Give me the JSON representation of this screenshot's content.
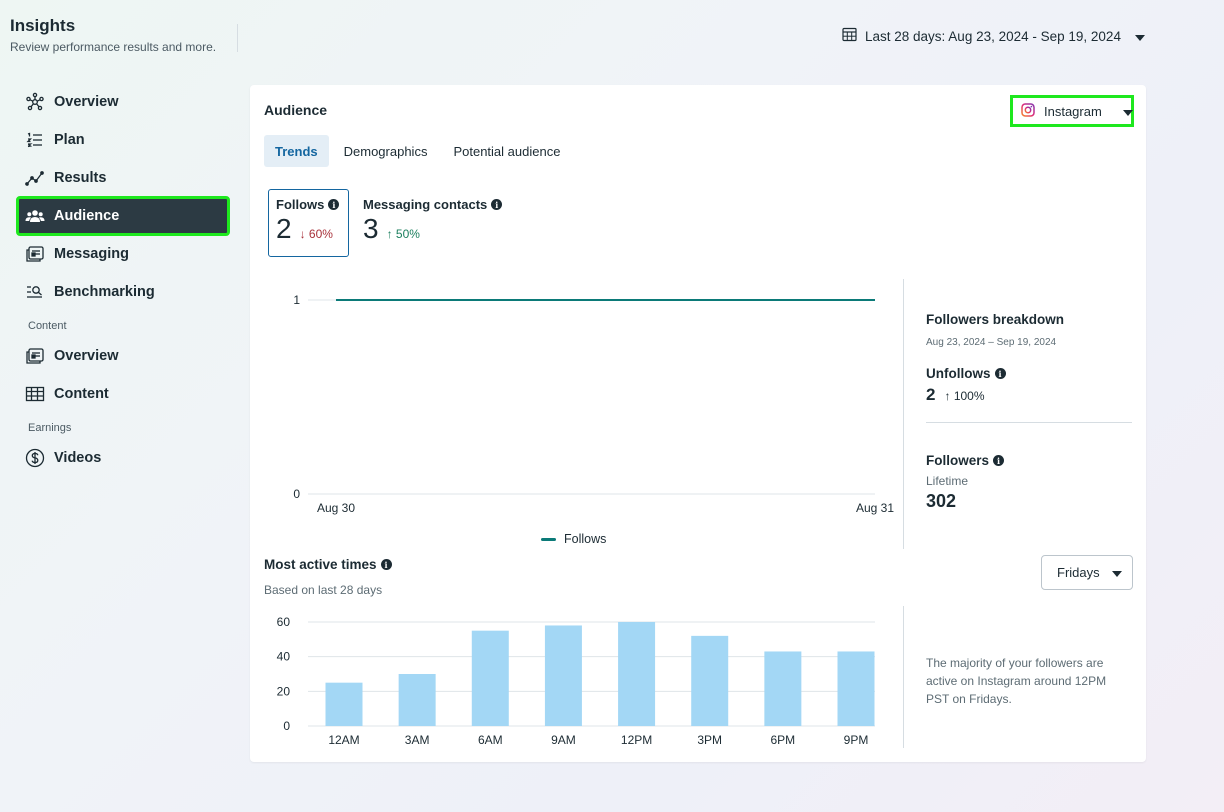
{
  "header": {
    "title": "Insights",
    "subtitle": "Review performance results and more.",
    "date_range": "Last 28 days: Aug 23, 2024 - Sep 19, 2024"
  },
  "sidebar": {
    "items": [
      {
        "label": "Overview",
        "icon": "overview-icon"
      },
      {
        "label": "Plan",
        "icon": "plan-icon"
      },
      {
        "label": "Results",
        "icon": "results-icon"
      },
      {
        "label": "Audience",
        "icon": "audience-icon",
        "active": true
      },
      {
        "label": "Messaging",
        "icon": "messaging-icon"
      },
      {
        "label": "Benchmarking",
        "icon": "benchmarking-icon"
      }
    ],
    "content_section": "Content",
    "content_items": [
      {
        "label": "Overview",
        "icon": "content-overview-icon"
      },
      {
        "label": "Content",
        "icon": "table-icon"
      }
    ],
    "earnings_section": "Earnings",
    "earnings_items": [
      {
        "label": "Videos",
        "icon": "dollar-icon"
      }
    ]
  },
  "audience": {
    "title": "Audience",
    "platform": "Instagram",
    "tabs": [
      "Trends",
      "Demographics",
      "Potential audience"
    ],
    "active_tab": "Trends",
    "metrics": [
      {
        "label": "Follows",
        "value": "2",
        "change": "60%",
        "direction": "down"
      },
      {
        "label": "Messaging contacts",
        "value": "3",
        "change": "50%",
        "direction": "up"
      }
    ],
    "legend_label": "Follows",
    "breakdown": {
      "title": "Followers breakdown",
      "date": "Aug 23, 2024 – Sep 19, 2024",
      "unfollows_label": "Unfollows",
      "unfollows_value": "2",
      "unfollows_change": "100%",
      "followers_label": "Followers",
      "followers_sub": "Lifetime",
      "followers_value": "302"
    },
    "most_active": {
      "title": "Most active times",
      "subtitle": "Based on last 28 days",
      "day_selector": "Fridays",
      "insight": "The majority of your followers are active on Instagram around 12PM PST on Fridays."
    }
  },
  "colors": {
    "accent": "#1466a0",
    "line": "#0b7a78",
    "bar": "#a3d7f5",
    "highlight": "#1ee81e",
    "sidebar_active": "#2c3a43"
  },
  "chart_data": [
    {
      "type": "line",
      "x": [
        "Aug 30",
        "Aug 31"
      ],
      "series": [
        {
          "name": "Follows",
          "values": [
            1,
            1
          ]
        }
      ],
      "ylim": [
        0,
        1
      ],
      "yticks": [
        "0",
        "1"
      ],
      "xticks": [
        "Aug 30",
        "Aug 31"
      ],
      "legend": "bottom-center"
    },
    {
      "type": "bar",
      "categories": [
        "12AM",
        "3AM",
        "6AM",
        "9AM",
        "12PM",
        "3PM",
        "6PM",
        "9PM"
      ],
      "values": [
        25,
        30,
        55,
        58,
        60,
        52,
        43,
        43
      ],
      "ylim": [
        0,
        60
      ],
      "yticks": [
        "0",
        "20",
        "40",
        "60"
      ]
    }
  ]
}
